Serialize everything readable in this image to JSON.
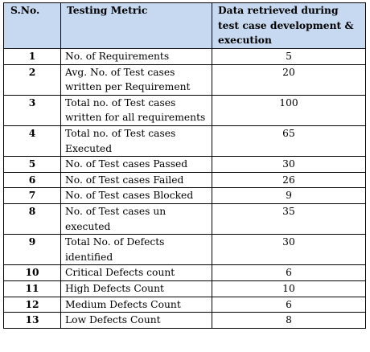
{
  "table": {
    "headers": {
      "sno": "S.No.",
      "metric": "Testing Metric",
      "data": "Data retrieved during test case development & execution"
    },
    "rows": [
      {
        "sno": "1",
        "metric": "No. of Requirements",
        "value": "5"
      },
      {
        "sno": "2",
        "metric": "Avg. No. of Test cases written per Requirement",
        "value": "20"
      },
      {
        "sno": "3",
        "metric": "Total no. of Test cases written for all requirements",
        "value": "100"
      },
      {
        "sno": "4",
        "metric": "Total no. of Test cases Executed",
        "value": "65"
      },
      {
        "sno": "5",
        "metric": "No. of Test cases Passed",
        "value": "30"
      },
      {
        "sno": "6",
        "metric": "No. of Test cases Failed",
        "value": "26"
      },
      {
        "sno": "7",
        "metric": "No. of Test cases Blocked",
        "value": "9"
      },
      {
        "sno": "8",
        "metric": "No. of Test cases un executed",
        "value": "35"
      },
      {
        "sno": "9",
        "metric": "Total No. of Defects identified",
        "value": "30"
      },
      {
        "sno": "10",
        "metric": "Critical Defects count",
        "value": "6"
      },
      {
        "sno": "11",
        "metric": "High Defects Count",
        "value": "10"
      },
      {
        "sno": "12",
        "metric": "Medium Defects Count",
        "value": "6"
      },
      {
        "sno": "13",
        "metric": "Low Defects Count",
        "value": "8"
      }
    ]
  }
}
